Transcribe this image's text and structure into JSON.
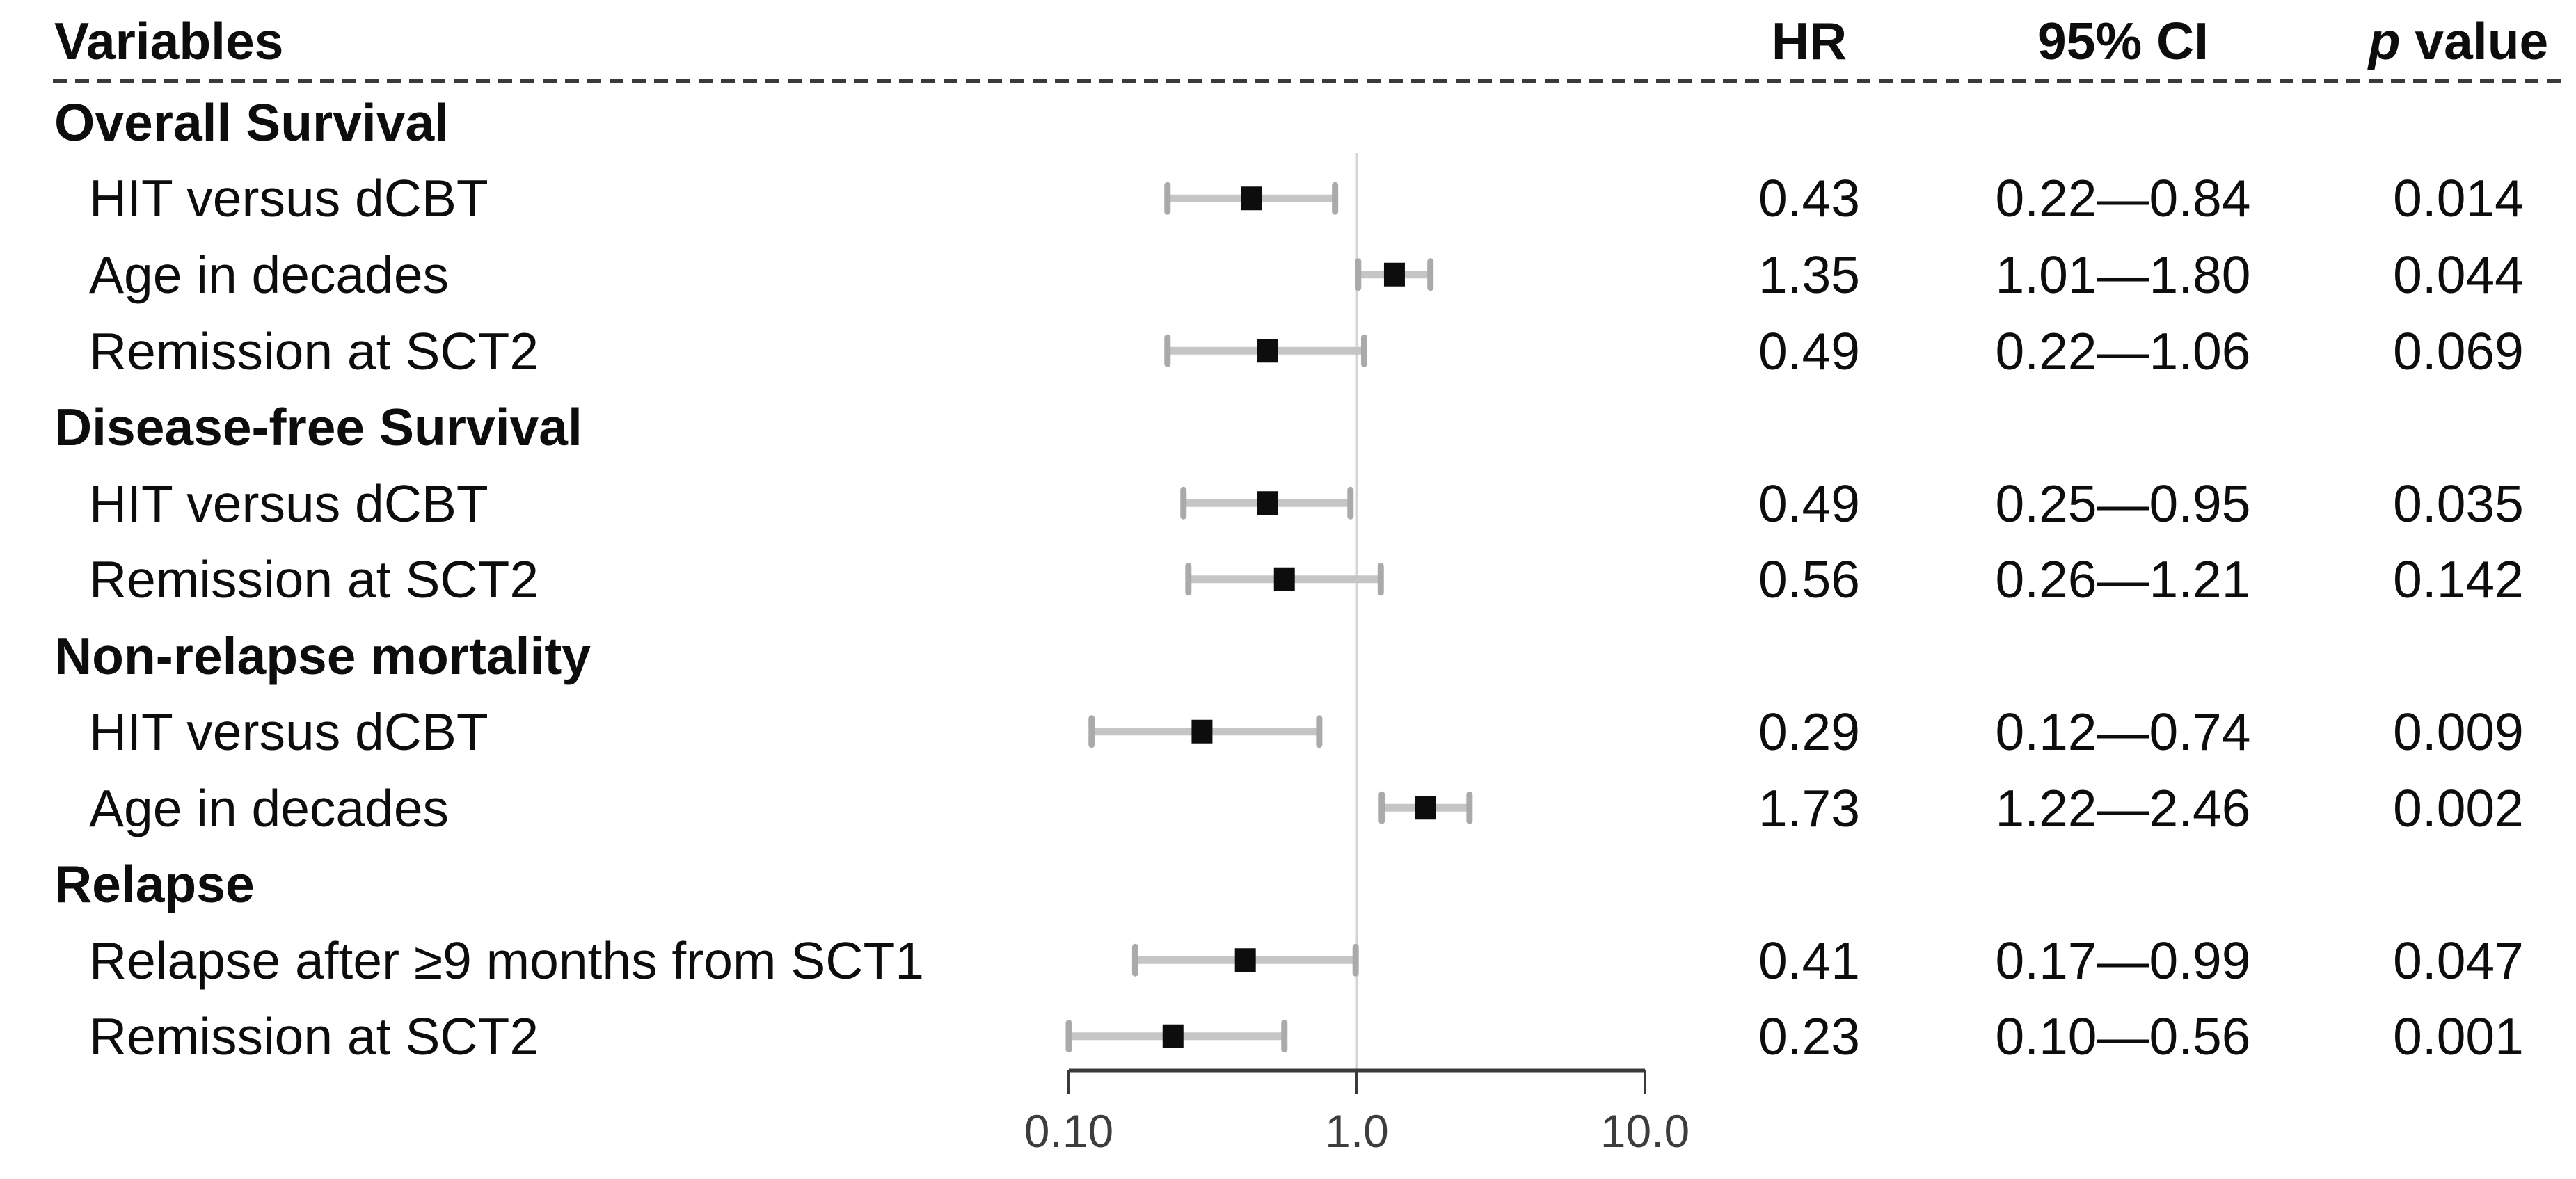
{
  "header": {
    "variables": "Variables",
    "hr": "HR",
    "ci": "95% CI",
    "p_symbol": "p",
    "p_rest": " value"
  },
  "rows": [
    {
      "type": "section",
      "label": "Overall Survival"
    },
    {
      "type": "item",
      "label": "HIT versus dCBT",
      "hr": "0.43",
      "ci": "0.22—0.84",
      "p": "0.014"
    },
    {
      "type": "item",
      "label": "Age in decades",
      "hr": "1.35",
      "ci": "1.01—1.80",
      "p": "0.044"
    },
    {
      "type": "item",
      "label": "Remission at SCT2",
      "hr": "0.49",
      "ci": "0.22—1.06",
      "p": "0.069"
    },
    {
      "type": "section",
      "label": "Disease-free Survival"
    },
    {
      "type": "item",
      "label": "HIT versus dCBT",
      "hr": "0.49",
      "ci": "0.25—0.95",
      "p": "0.035"
    },
    {
      "type": "item",
      "label": "Remission at SCT2",
      "hr": "0.56",
      "ci": "0.26—1.21",
      "p": "0.142"
    },
    {
      "type": "section",
      "label": "Non-relapse mortality"
    },
    {
      "type": "item",
      "label": "HIT versus dCBT",
      "hr": "0.29",
      "ci": "0.12—0.74",
      "p": "0.009"
    },
    {
      "type": "item",
      "label": "Age in decades",
      "hr": "1.73",
      "ci": "1.22—2.46",
      "p": "0.002"
    },
    {
      "type": "section",
      "label": "Relapse"
    },
    {
      "type": "item",
      "label": "Relapse after ≥9 months from SCT1",
      "hr": "0.41",
      "ci": "0.17—0.99",
      "p": "0.047"
    },
    {
      "type": "item",
      "label": "Remission at SCT2",
      "hr": "0.23",
      "ci": "0.10—0.56",
      "p": "0.001"
    }
  ],
  "chart_data": {
    "type": "forest",
    "x_scale": "log10",
    "x_range": [
      0.1,
      10.0
    ],
    "reference_line": 1.0,
    "x_ticks": [
      {
        "value": 0.1,
        "label": "0.10"
      },
      {
        "value": 1.0,
        "label": "1.0"
      },
      {
        "value": 10.0,
        "label": "10.0"
      }
    ],
    "points": [
      {
        "row": 1,
        "group": "Overall Survival",
        "label": "HIT versus dCBT",
        "hr": 0.43,
        "lo": 0.22,
        "hi": 0.84,
        "p": 0.014
      },
      {
        "row": 2,
        "group": "Overall Survival",
        "label": "Age in decades",
        "hr": 1.35,
        "lo": 1.01,
        "hi": 1.8,
        "p": 0.044
      },
      {
        "row": 3,
        "group": "Overall Survival",
        "label": "Remission at SCT2",
        "hr": 0.49,
        "lo": 0.22,
        "hi": 1.06,
        "p": 0.069
      },
      {
        "row": 5,
        "group": "Disease-free Survival",
        "label": "HIT versus dCBT",
        "hr": 0.49,
        "lo": 0.25,
        "hi": 0.95,
        "p": 0.035
      },
      {
        "row": 6,
        "group": "Disease-free Survival",
        "label": "Remission at SCT2",
        "hr": 0.56,
        "lo": 0.26,
        "hi": 1.21,
        "p": 0.142
      },
      {
        "row": 8,
        "group": "Non-relapse mortality",
        "label": "HIT versus dCBT",
        "hr": 0.29,
        "lo": 0.12,
        "hi": 0.74,
        "p": 0.009
      },
      {
        "row": 9,
        "group": "Non-relapse mortality",
        "label": "Age in decades",
        "hr": 1.73,
        "lo": 1.22,
        "hi": 2.46,
        "p": 0.002
      },
      {
        "row": 11,
        "group": "Relapse",
        "label": "Relapse after ≥9 months from SCT1",
        "hr": 0.41,
        "lo": 0.17,
        "hi": 0.99,
        "p": 0.047
      },
      {
        "row": 12,
        "group": "Relapse",
        "label": "Remission at SCT2",
        "hr": 0.23,
        "lo": 0.1,
        "hi": 0.56,
        "p": 0.001
      }
    ],
    "colors": {
      "marker": "#0d0d0d",
      "ci_bar": "#c5c5c5",
      "ci_cap": "#aaaaaa",
      "reference_line": "#d4d4d4",
      "axis": "#3a3a3a",
      "text": "#0d0d0d"
    }
  }
}
